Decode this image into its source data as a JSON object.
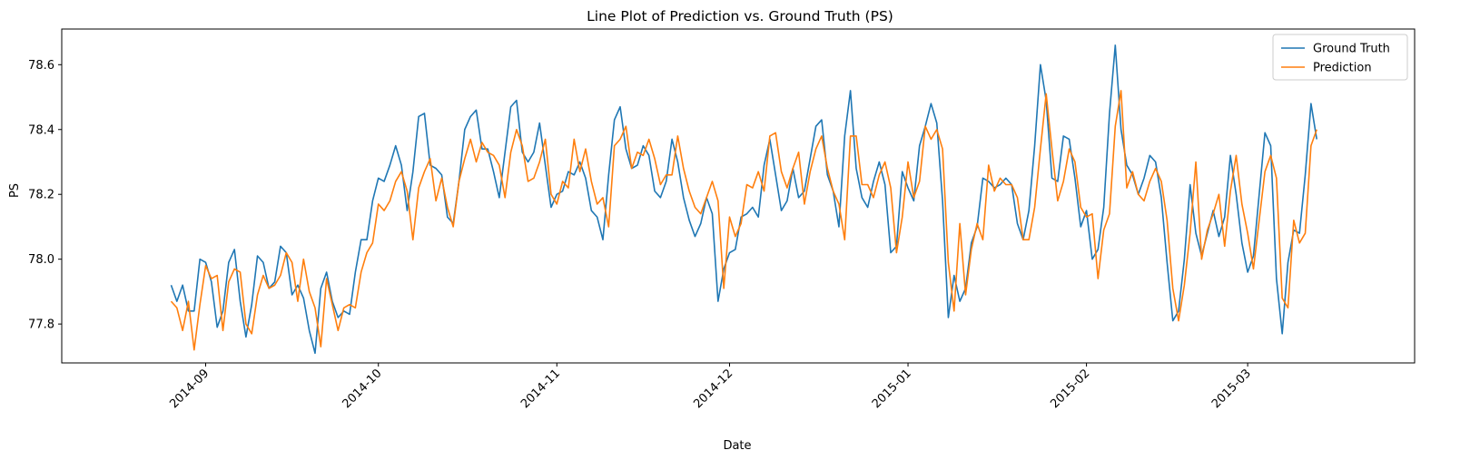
{
  "chart_data": {
    "type": "line",
    "title": "Line Plot of Prediction vs. Ground Truth (PS)",
    "xlabel": "Date",
    "ylabel": "PS",
    "start_date": "2014-08-26",
    "x_ticks": [
      {
        "date": "2014-09-01",
        "label": "2014-09"
      },
      {
        "date": "2014-10-01",
        "label": "2014-10"
      },
      {
        "date": "2014-11-01",
        "label": "2014-11"
      },
      {
        "date": "2014-12-01",
        "label": "2014-12"
      },
      {
        "date": "2015-01-01",
        "label": "2015-01"
      },
      {
        "date": "2015-02-01",
        "label": "2015-02"
      },
      {
        "date": "2015-03-01",
        "label": "2015-03"
      }
    ],
    "y_ticks": [
      77.8,
      78.0,
      78.2,
      78.4,
      78.6
    ],
    "ylim": [
      77.68,
      78.71
    ],
    "xlim": [
      "2014-08-07",
      "2015-03-30"
    ],
    "legend_position": "top-right",
    "grid": false,
    "series": [
      {
        "name": "Ground Truth",
        "color": "#1f77b4",
        "values": [
          77.92,
          77.87,
          77.92,
          77.84,
          77.84,
          78.0,
          77.99,
          77.93,
          77.79,
          77.84,
          77.99,
          78.03,
          77.87,
          77.76,
          77.86,
          78.01,
          77.99,
          77.91,
          77.93,
          78.04,
          78.02,
          77.89,
          77.92,
          77.88,
          77.78,
          77.71,
          77.91,
          77.96,
          77.87,
          77.82,
          77.84,
          77.83,
          77.96,
          78.06,
          78.06,
          78.18,
          78.25,
          78.24,
          78.29,
          78.35,
          78.29,
          78.15,
          78.27,
          78.44,
          78.45,
          78.29,
          78.28,
          78.26,
          78.13,
          78.11,
          78.24,
          78.4,
          78.44,
          78.46,
          78.34,
          78.34,
          78.27,
          78.19,
          78.33,
          78.47,
          78.49,
          78.33,
          78.3,
          78.33,
          78.42,
          78.29,
          78.16,
          78.2,
          78.21,
          78.27,
          78.26,
          78.3,
          78.25,
          78.15,
          78.13,
          78.06,
          78.26,
          78.43,
          78.47,
          78.34,
          78.28,
          78.29,
          78.35,
          78.32,
          78.21,
          78.19,
          78.24,
          78.37,
          78.3,
          78.19,
          78.12,
          78.07,
          78.11,
          78.19,
          78.14,
          77.87,
          77.97,
          78.02,
          78.03,
          78.13,
          78.14,
          78.16,
          78.13,
          78.29,
          78.37,
          78.26,
          78.15,
          78.18,
          78.28,
          78.19,
          78.21,
          78.31,
          78.41,
          78.43,
          78.26,
          78.21,
          78.1,
          78.38,
          78.52,
          78.28,
          78.19,
          78.16,
          78.24,
          78.3,
          78.23,
          78.02,
          78.04,
          78.27,
          78.22,
          78.18,
          78.35,
          78.41,
          78.48,
          78.42,
          78.18,
          77.82,
          77.95,
          77.87,
          77.91,
          78.05,
          78.1,
          78.25,
          78.24,
          78.22,
          78.23,
          78.25,
          78.23,
          78.11,
          78.06,
          78.15,
          78.35,
          78.6,
          78.49,
          78.25,
          78.24,
          78.38,
          78.37,
          78.25,
          78.1,
          78.15,
          78.0,
          78.03,
          78.16,
          78.45,
          78.66,
          78.4,
          78.29,
          78.26,
          78.2,
          78.25,
          78.32,
          78.3,
          78.19,
          77.99,
          77.81,
          77.84,
          78.0,
          78.23,
          78.08,
          78.01,
          78.08,
          78.15,
          78.07,
          78.13,
          78.32,
          78.2,
          78.05,
          77.96,
          78.01,
          78.2,
          78.39,
          78.35,
          77.94,
          77.77,
          77.99,
          78.09,
          78.08,
          78.26,
          78.48,
          78.37
        ]
      },
      {
        "name": "Prediction",
        "color": "#ff7f0e",
        "values": [
          77.87,
          77.85,
          77.78,
          77.87,
          77.72,
          77.86,
          77.98,
          77.94,
          77.95,
          77.78,
          77.93,
          77.97,
          77.96,
          77.8,
          77.77,
          77.89,
          77.95,
          77.91,
          77.92,
          77.95,
          78.02,
          77.99,
          77.87,
          78.0,
          77.9,
          77.85,
          77.73,
          77.94,
          77.86,
          77.78,
          77.85,
          77.86,
          77.85,
          77.96,
          78.02,
          78.05,
          78.17,
          78.15,
          78.18,
          78.24,
          78.27,
          78.21,
          78.06,
          78.22,
          78.27,
          78.31,
          78.18,
          78.25,
          78.16,
          78.1,
          78.24,
          78.31,
          78.37,
          78.3,
          78.36,
          78.33,
          78.32,
          78.29,
          78.19,
          78.33,
          78.4,
          78.35,
          78.24,
          78.25,
          78.3,
          78.37,
          78.2,
          78.17,
          78.24,
          78.22,
          78.37,
          78.27,
          78.34,
          78.24,
          78.17,
          78.19,
          78.1,
          78.35,
          78.37,
          78.41,
          78.28,
          78.33,
          78.32,
          78.37,
          78.31,
          78.23,
          78.26,
          78.26,
          78.38,
          78.28,
          78.21,
          78.16,
          78.14,
          78.19,
          78.24,
          78.18,
          77.91,
          78.13,
          78.07,
          78.11,
          78.23,
          78.22,
          78.27,
          78.21,
          78.38,
          78.39,
          78.27,
          78.22,
          78.28,
          78.33,
          78.17,
          78.27,
          78.34,
          78.38,
          78.28,
          78.21,
          78.17,
          78.06,
          78.38,
          78.38,
          78.23,
          78.23,
          78.19,
          78.26,
          78.3,
          78.22,
          78.02,
          78.13,
          78.3,
          78.19,
          78.24,
          78.41,
          78.37,
          78.4,
          78.34,
          77.99,
          77.84,
          78.11,
          77.89,
          78.03,
          78.11,
          78.06,
          78.29,
          78.21,
          78.25,
          78.23,
          78.23,
          78.19,
          78.06,
          78.06,
          78.16,
          78.34,
          78.51,
          78.34,
          78.18,
          78.24,
          78.34,
          78.3,
          78.16,
          78.13,
          78.14,
          77.94,
          78.09,
          78.14,
          78.41,
          78.52,
          78.22,
          78.27,
          78.2,
          78.18,
          78.24,
          78.28,
          78.24,
          78.12,
          77.91,
          77.81,
          77.92,
          78.08,
          78.3,
          78.0,
          78.09,
          78.14,
          78.2,
          78.04,
          78.21,
          78.32,
          78.17,
          78.08,
          77.97,
          78.12,
          78.27,
          78.32,
          78.25,
          77.88,
          77.85,
          78.12,
          78.05,
          78.08,
          78.35,
          78.4
        ]
      }
    ]
  }
}
